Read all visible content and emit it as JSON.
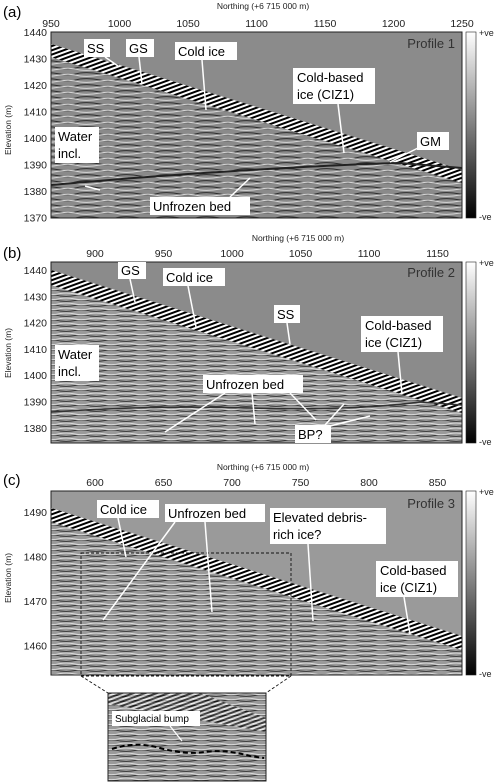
{
  "figure": {
    "colorbar": {
      "top_label": "+ve",
      "bottom_label": "-ve"
    },
    "axis_titles": {
      "x": "Northing (+6 715 000 m)",
      "y": "Elevation (m)"
    },
    "panels": [
      {
        "letter": "(a)",
        "profile_title": "Profile 1",
        "x_ticks": [
          "950",
          "1000",
          "1050",
          "1100",
          "1150",
          "1200",
          "1250"
        ],
        "y_ticks": [
          "1440",
          "1430",
          "1420",
          "1410",
          "1400",
          "1390",
          "1380",
          "1370"
        ],
        "annotations": [
          "SS",
          "GS",
          "Cold ice",
          "Cold-based",
          "ice (CIZ1)",
          "Water",
          "incl.",
          "GM",
          "Unfrozen bed"
        ]
      },
      {
        "letter": "(b)",
        "profile_title": "Profile 2",
        "x_ticks": [
          "900",
          "950",
          "1000",
          "1050",
          "1100",
          "1150"
        ],
        "y_ticks": [
          "1440",
          "1430",
          "1420",
          "1410",
          "1400",
          "1390",
          "1380"
        ],
        "annotations": [
          "GS",
          "Cold ice",
          "SS",
          "Cold-based",
          "ice (CIZ1)",
          "Water",
          "incl.",
          "Unfrozen bed",
          "BP?"
        ]
      },
      {
        "letter": "(c)",
        "profile_title": "Profile 3",
        "x_ticks": [
          "600",
          "650",
          "700",
          "750",
          "800",
          "850"
        ],
        "y_ticks": [
          "1490",
          "1480",
          "1470",
          "1460"
        ],
        "annotations": [
          "Cold ice",
          "Unfrozen bed",
          "Elevated debris-",
          "rich ice?",
          "Cold-based",
          "ice (CIZ1)"
        ],
        "inset_label": "Subglacial bump"
      }
    ]
  }
}
